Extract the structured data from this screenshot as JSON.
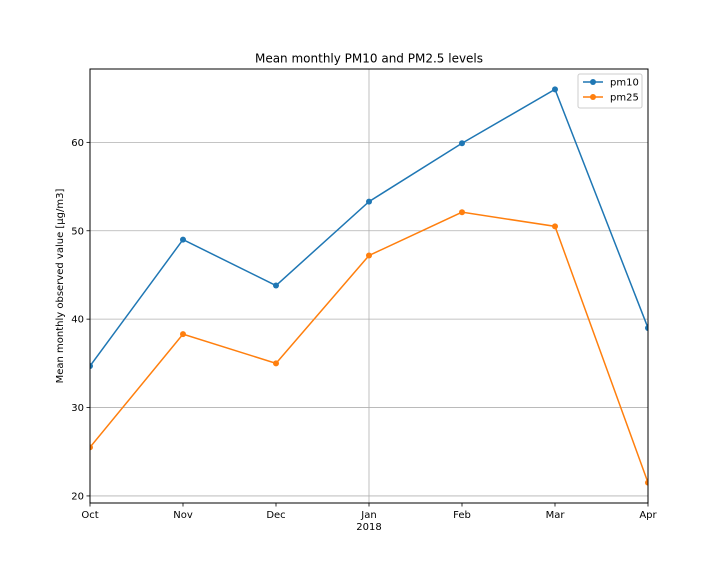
{
  "chart_data": {
    "type": "line",
    "title": "Mean monthly PM10 and PM2.5 levels",
    "xlabel": "",
    "ylabel": "Mean monthly observed value [μg/m3]",
    "categories": [
      "Oct",
      "Nov",
      "Dec",
      "Jan",
      "Feb",
      "Mar",
      "Apr"
    ],
    "year_label": "2018",
    "ylim": [
      19.2,
      68.3
    ],
    "yticks": [
      20,
      30,
      40,
      50,
      60
    ],
    "grid": true,
    "legend_position": "top-right",
    "series": [
      {
        "name": "pm10",
        "color": "#1f77b4",
        "values": [
          34.7,
          49.0,
          43.8,
          53.3,
          59.9,
          66.0,
          39.0
        ]
      },
      {
        "name": "pm25",
        "color": "#ff7f0e",
        "values": [
          25.5,
          38.3,
          35.0,
          47.2,
          52.1,
          50.5,
          21.5
        ]
      }
    ]
  }
}
